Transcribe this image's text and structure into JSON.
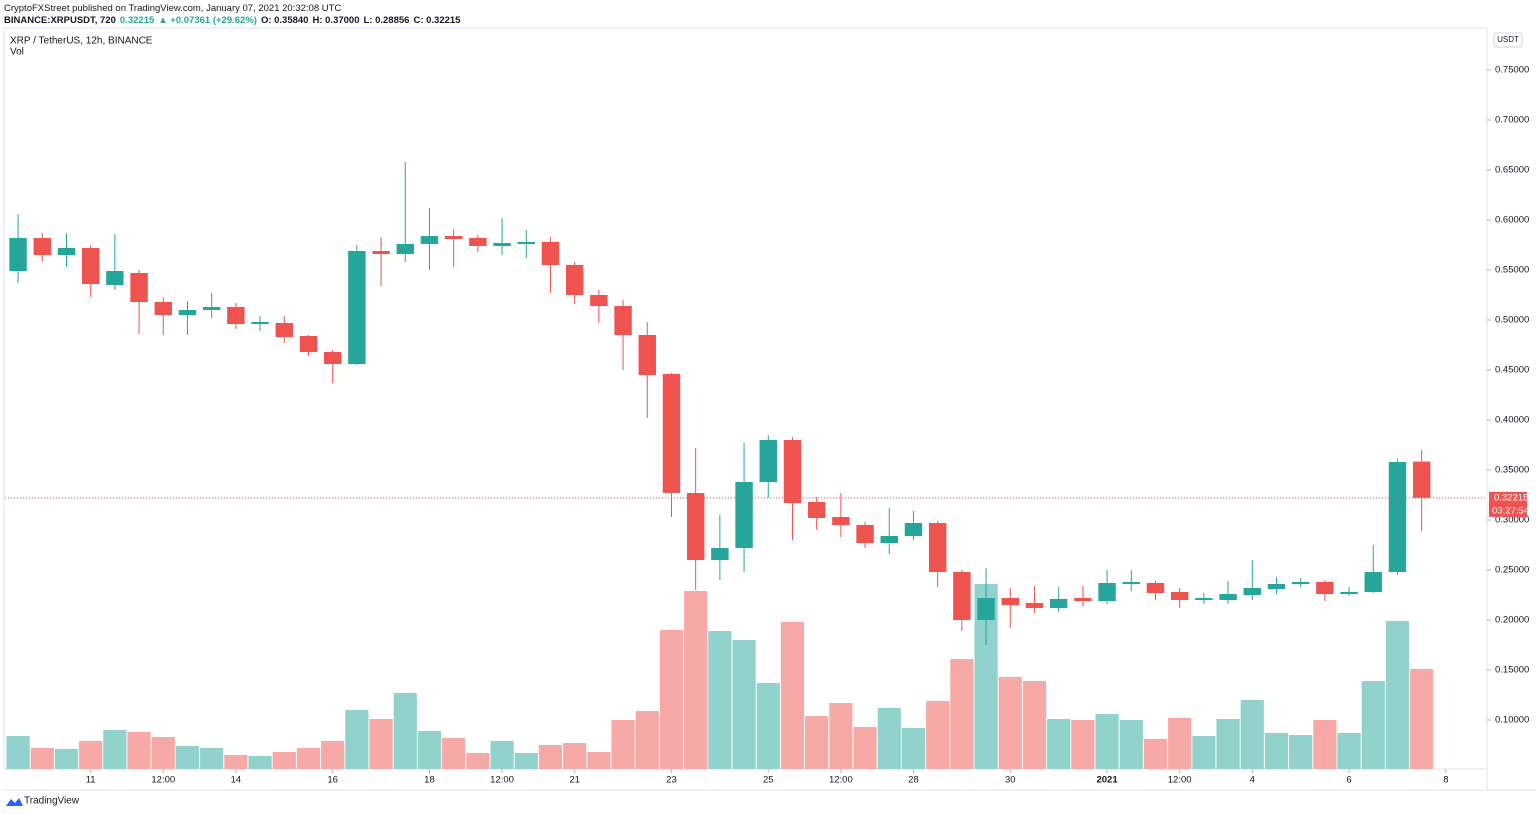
{
  "header": {
    "publisher": "CryptoFXStreet published on TradingView.com, January 07, 2021 20:32:08 UTC",
    "symbol": "BINANCE:XRPUSDT, 720",
    "last": "0.32215",
    "change": "▲ +0.07361 (+29.62%)",
    "o": "O: 0.35840",
    "h": "H: 0.37000",
    "l": "L: 0.28856",
    "c": "C: 0.32215"
  },
  "chart_data": {
    "type": "candlestick",
    "title": "XRP / TetherUS, 12h, BINANCE",
    "volume_label": "Vol",
    "currency": "USDT",
    "up_color": "#26a69a",
    "down_color": "#ef5350",
    "volume_up_color": "#92d2cc",
    "volume_down_color": "#f7a9a7",
    "open": [
      0.549,
      0.582,
      0.565,
      0.572,
      0.535,
      0.547,
      0.518,
      0.505,
      0.51,
      0.513,
      0.496,
      0.497,
      0.484,
      0.468,
      0.456,
      0.569,
      0.566,
      0.576,
      0.584,
      0.582,
      0.574,
      0.576,
      0.578,
      0.555,
      0.525,
      0.514,
      0.485,
      0.446,
      0.327,
      0.26,
      0.272,
      0.338,
      0.38,
      0.318,
      0.303,
      0.295,
      0.277,
      0.284,
      0.297,
      0.248,
      0.2,
      0.222,
      0.217,
      0.212,
      0.222,
      0.219,
      0.236,
      0.237,
      0.228,
      0.22,
      0.22,
      0.225,
      0.231,
      0.236,
      0.238,
      0.226,
      0.228,
      0.248,
      0.3584
    ],
    "high": [
      0.606,
      0.587,
      0.587,
      0.575,
      0.586,
      0.55,
      0.523,
      0.519,
      0.527,
      0.517,
      0.504,
      0.504,
      0.485,
      0.47,
      0.575,
      0.583,
      0.658,
      0.612,
      0.591,
      0.585,
      0.602,
      0.59,
      0.583,
      0.558,
      0.53,
      0.52,
      0.498,
      0.447,
      0.372,
      0.305,
      0.377,
      0.385,
      0.383,
      0.323,
      0.327,
      0.298,
      0.312,
      0.309,
      0.299,
      0.25,
      0.252,
      0.232,
      0.234,
      0.233,
      0.234,
      0.25,
      0.25,
      0.239,
      0.232,
      0.227,
      0.239,
      0.26,
      0.243,
      0.242,
      0.24,
      0.233,
      0.275,
      0.361,
      0.37
    ],
    "low": [
      0.537,
      0.558,
      0.553,
      0.523,
      0.53,
      0.486,
      0.485,
      0.485,
      0.502,
      0.491,
      0.489,
      0.477,
      0.464,
      0.437,
      0.455,
      0.534,
      0.558,
      0.55,
      0.553,
      0.568,
      0.565,
      0.562,
      0.527,
      0.516,
      0.497,
      0.45,
      0.402,
      0.303,
      0.23,
      0.24,
      0.248,
      0.322,
      0.28,
      0.29,
      0.283,
      0.272,
      0.266,
      0.28,
      0.233,
      0.189,
      0.175,
      0.192,
      0.207,
      0.208,
      0.214,
      0.216,
      0.229,
      0.22,
      0.212,
      0.216,
      0.216,
      0.22,
      0.226,
      0.233,
      0.219,
      0.224,
      0.227,
      0.245,
      0.28856
    ],
    "close": [
      0.582,
      0.565,
      0.572,
      0.536,
      0.549,
      0.518,
      0.505,
      0.51,
      0.513,
      0.496,
      0.498,
      0.483,
      0.468,
      0.456,
      0.569,
      0.566,
      0.576,
      0.584,
      0.581,
      0.574,
      0.577,
      0.578,
      0.555,
      0.525,
      0.514,
      0.485,
      0.445,
      0.327,
      0.26,
      0.272,
      0.338,
      0.38,
      0.317,
      0.302,
      0.295,
      0.277,
      0.284,
      0.297,
      0.248,
      0.2,
      0.222,
      0.215,
      0.212,
      0.221,
      0.219,
      0.237,
      0.238,
      0.227,
      0.22,
      0.222,
      0.226,
      0.232,
      0.236,
      0.238,
      0.226,
      0.228,
      0.248,
      0.358,
      0.32215
    ],
    "volume": [
      33,
      21,
      20,
      28,
      39,
      37,
      32,
      23,
      21,
      14,
      13,
      17,
      21,
      28,
      59,
      50,
      76,
      38,
      31,
      16,
      28,
      16,
      24,
      26,
      17,
      49,
      58,
      139,
      178,
      138,
      129,
      86,
      147,
      53,
      66,
      42,
      61,
      41,
      68,
      110,
      185,
      92,
      88,
      50,
      49,
      55,
      49,
      30,
      51,
      33,
      50,
      69,
      36,
      34,
      49,
      36,
      88,
      148,
      100
    ],
    "last_price": {
      "value": 0.32215,
      "label": "0.32215"
    },
    "countdown": "03:27:54",
    "xlim": [
      -0.54,
      60.7
    ],
    "xticks": [
      {
        "value": 3,
        "label": "11"
      },
      {
        "value": 6,
        "label": "12:00"
      },
      {
        "value": 9,
        "label": "14"
      },
      {
        "value": 13,
        "label": "16"
      },
      {
        "value": 17,
        "label": "18"
      },
      {
        "value": 20,
        "label": "12:00"
      },
      {
        "value": 23,
        "label": "21"
      },
      {
        "value": 27,
        "label": "23"
      },
      {
        "value": 31,
        "label": "25"
      },
      {
        "value": 34,
        "label": "12:00"
      },
      {
        "value": 37,
        "label": "28"
      },
      {
        "value": 41,
        "label": "30"
      },
      {
        "value": 45,
        "label": "2021"
      },
      {
        "value": 48,
        "label": "12:00"
      },
      {
        "value": 51,
        "label": "4"
      },
      {
        "value": 55,
        "label": "6"
      },
      {
        "value": 59,
        "label": "8"
      }
    ],
    "ylim": [
      0.051,
      0.79
    ],
    "yticks": [
      {
        "value": 0.1,
        "label": "0.10000"
      },
      {
        "value": 0.15,
        "label": "0.15000"
      },
      {
        "value": 0.2,
        "label": "0.20000"
      },
      {
        "value": 0.25,
        "label": "0.25000"
      },
      {
        "value": 0.3,
        "label": "0.30000"
      },
      {
        "value": 0.35,
        "label": "0.35000"
      },
      {
        "value": 0.4,
        "label": "0.40000"
      },
      {
        "value": 0.45,
        "label": "0.45000"
      },
      {
        "value": 0.5,
        "label": "0.50000"
      },
      {
        "value": 0.55,
        "label": "0.55000"
      },
      {
        "value": 0.6,
        "label": "0.60000"
      },
      {
        "value": 0.65,
        "label": "0.65000"
      },
      {
        "value": 0.7,
        "label": "0.70000"
      },
      {
        "value": 0.75,
        "label": "0.75000"
      }
    ]
  },
  "footer": {
    "brand": "TradingView"
  }
}
